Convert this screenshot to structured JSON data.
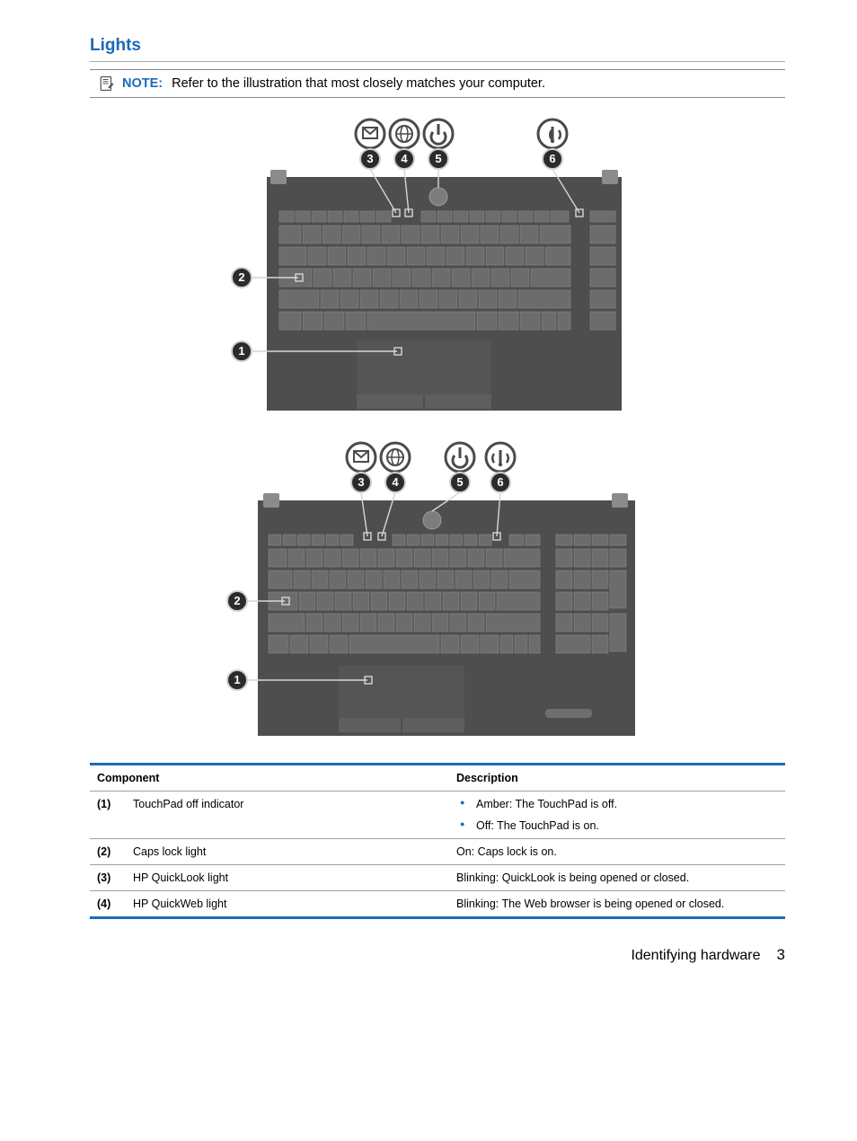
{
  "section_title": "Lights",
  "note": {
    "label": "NOTE:",
    "text": "Refer to the illustration that most closely matches your computer."
  },
  "illustrations": {
    "callouts": [
      "1",
      "2",
      "3",
      "4",
      "5",
      "6"
    ],
    "keyboard_bg": "#5a5a5a",
    "key_bg": "#6c6c6c",
    "key_border": "#8a8a8a",
    "callout_fill": "#2b2b2b",
    "callout_stroke": "#cfcfcf",
    "icon_stroke": "#5a5a5a"
  },
  "table": {
    "headers": [
      "Component",
      "Description"
    ],
    "rows": [
      {
        "num": "(1)",
        "name": "TouchPad off indicator",
        "desc_type": "bullets",
        "desc": [
          "Amber: The TouchPad is off.",
          "Off: The TouchPad is on."
        ]
      },
      {
        "num": "(2)",
        "name": "Caps lock light",
        "desc_type": "text",
        "desc": "On: Caps lock is on."
      },
      {
        "num": "(3)",
        "name": "HP QuickLook light",
        "desc_type": "text",
        "desc": "Blinking: QuickLook is being opened or closed."
      },
      {
        "num": "(4)",
        "name": "HP QuickWeb light",
        "desc_type": "text",
        "desc": "Blinking: The Web browser is being opened or closed."
      }
    ]
  },
  "footer": {
    "label": "Identifying hardware",
    "page": "3"
  },
  "colors": {
    "accent": "#1a6bb8",
    "rule": "#9f9f9f"
  }
}
